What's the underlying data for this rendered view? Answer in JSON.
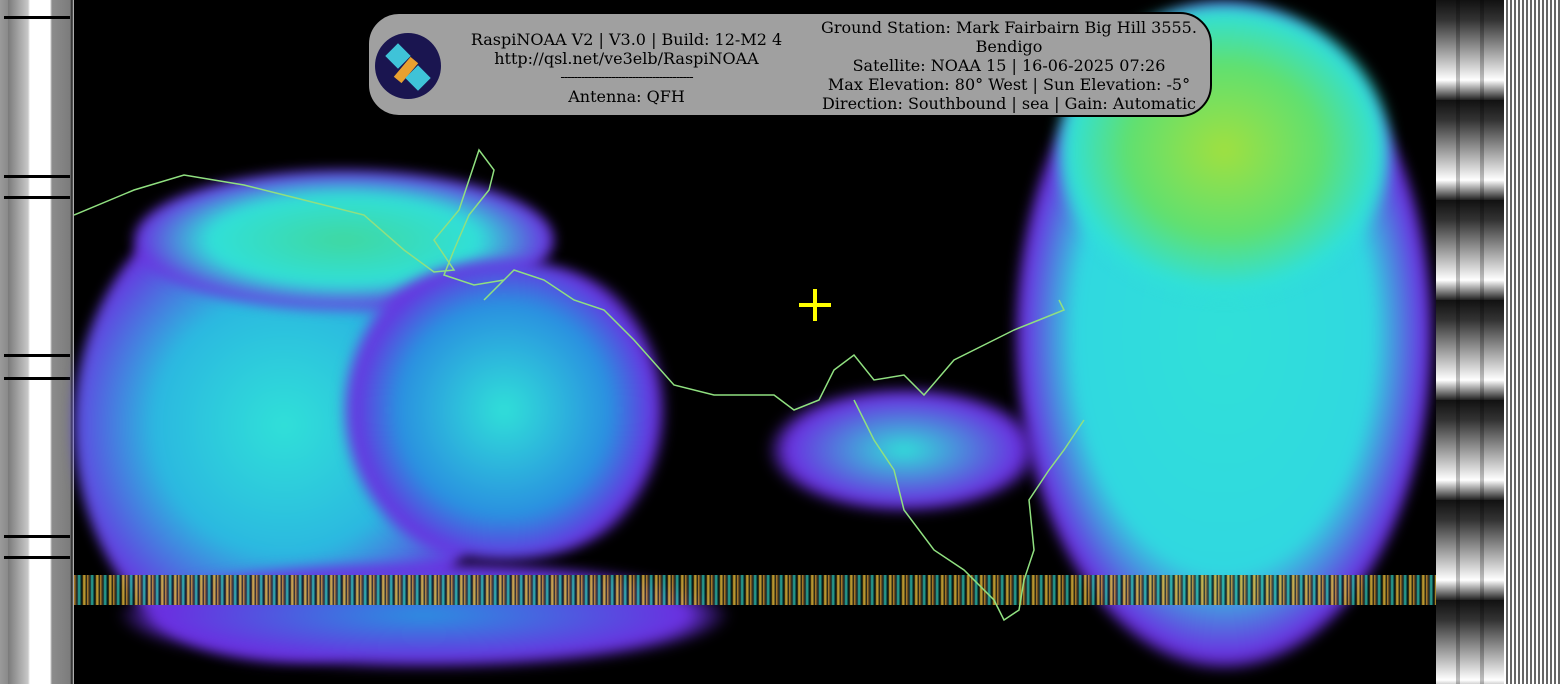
{
  "overlay": {
    "software_line": "RaspiNOAA V2 | V3.0 | Build: 12-M2 4",
    "url": "http://qsl.net/ve3elb/RaspiNOAA",
    "separator": "---------------------------------------",
    "antenna": "Antenna: QFH",
    "ground_station": "Ground Station: Mark Fairbairn Big Hill 3555.",
    "location": "Bendigo",
    "satellite": "Satellite: NOAA 15 | 16-06-2025 07:26",
    "elevation": "Max Elevation: 80° West | Sun Elevation: -5°",
    "direction": "Direction: Southbound | sea | Gain: Automatic"
  },
  "logo_icon": "satellite-icon",
  "marker_icon": "crosshair-icon",
  "colors": {
    "marker": "#ffff00",
    "panel": "#a0a0a0",
    "coastline": "#90e080",
    "cloud_cyan": "#30e0d8",
    "cloud_purple": "#6a30e0",
    "cloud_green": "#60e070"
  }
}
